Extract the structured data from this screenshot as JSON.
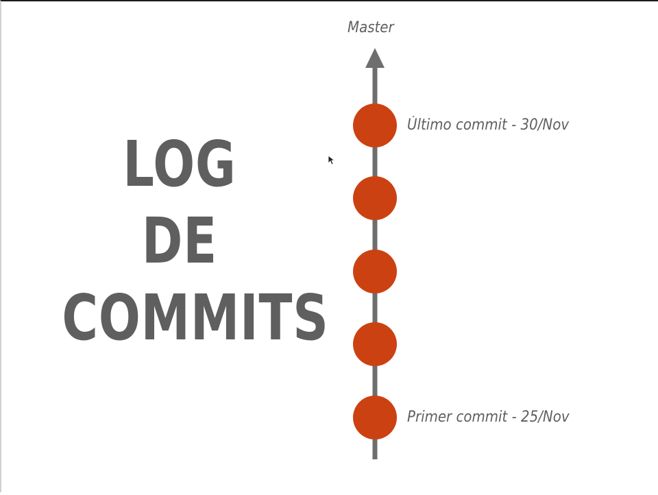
{
  "title_lines": [
    "LOG",
    "DE",
    "COMMITS"
  ],
  "branch": {
    "name": "Master"
  },
  "commits": {
    "count": 5,
    "latest_label": "Último commit - 30/Nov",
    "first_label": "Primer commit - 25/Nov"
  },
  "colors": {
    "commit": "#cc4112",
    "line": "#6e6e6e",
    "text": "#5f5f5f"
  }
}
